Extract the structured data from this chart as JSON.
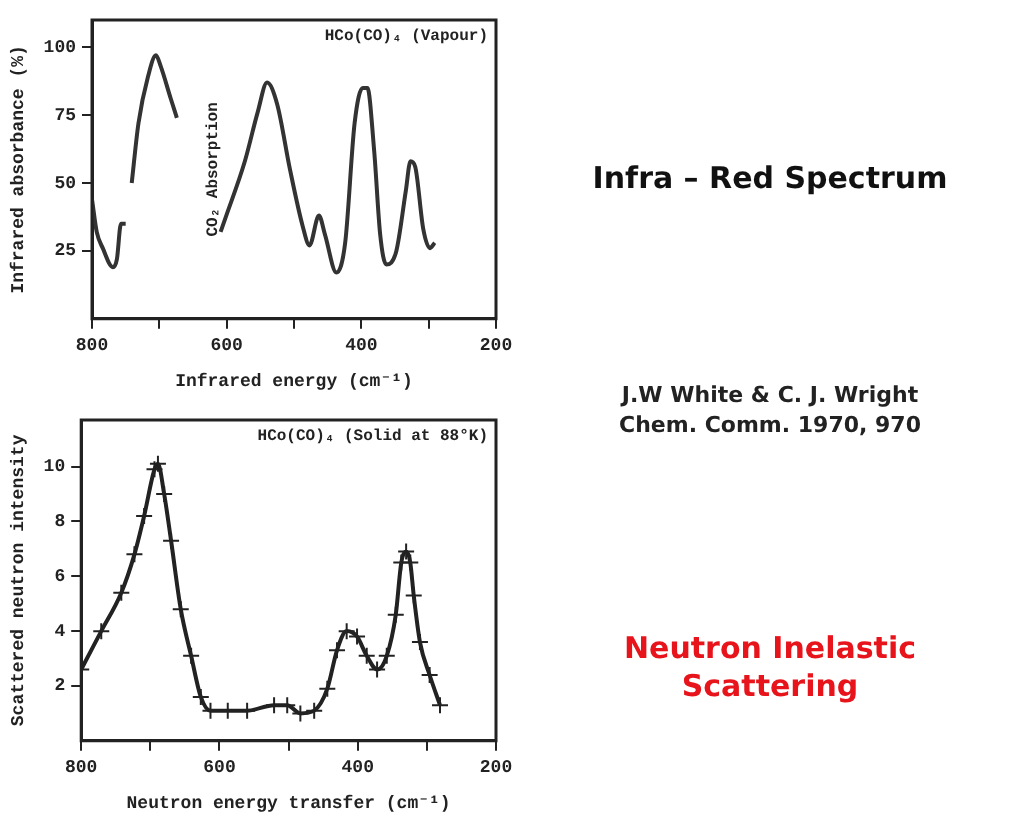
{
  "chart_data": [
    {
      "type": "line",
      "subtitle": "HCo(CO)₄ (Vapour)",
      "xlabel": "Infrared energy (cm⁻¹)",
      "ylabel": "Infrared absorbance (%)",
      "annotations": [
        "CO₂ Absorption"
      ],
      "x": [
        800,
        793,
        784,
        769,
        763,
        757,
        750,
        746,
        741,
        731,
        717,
        705,
        698,
        683,
        674,
        640,
        609,
        602,
        573,
        554,
        540,
        525,
        506,
        487,
        477,
        463,
        454,
        437,
        424,
        410,
        398,
        391,
        381,
        372,
        363,
        348,
        334,
        327,
        320,
        308,
        298,
        291
      ],
      "values": [
        44,
        32,
        26,
        19,
        22,
        35,
        35,
        null,
        50,
        72,
        89,
        97,
        93,
        81,
        74,
        null,
        32,
        37,
        58,
        76,
        87,
        79,
        55,
        34,
        27,
        38,
        31,
        17,
        28,
        72,
        85,
        85,
        62,
        31,
        20,
        25,
        47,
        58,
        56,
        33,
        26,
        28
      ],
      "color": "#333333",
      "xlim": [
        800,
        200
      ],
      "ylim": [
        0,
        110
      ],
      "xticks": [
        800,
        {
          "value": 700,
          "label": null
        },
        600,
        {
          "value": 500,
          "label": null
        },
        400,
        {
          "value": 300,
          "label": null
        },
        200
      ],
      "yticks": [
        25,
        50,
        75,
        100
      ],
      "grid": false,
      "legend": false,
      "marker": "none",
      "line_style": "solid"
    },
    {
      "type": "other",
      "annotations": [
        "Infra – Red Spectrum",
        "J.W White & C. J. Wright",
        "Chem. Comm.  1970, 970",
        "Neutron Inelastic Scattering"
      ]
    },
    {
      "type": "line",
      "subtitle": "HCo(CO)₄ (Solid at 88°K)",
      "xlabel": "Neutron energy transfer (cm⁻¹)",
      "ylabel": "Scattered neutron intensity",
      "x": [
        800,
        771,
        742,
        723,
        709,
        694,
        689,
        680,
        670,
        656,
        641,
        627,
        613,
        588,
        560,
        521,
        502,
        483,
        463,
        444,
        430,
        416,
        401,
        387,
        372,
        358,
        345,
        337,
        330,
        324,
        319,
        310,
        296,
        281
      ],
      "values": [
        2.6,
        4.0,
        5.4,
        6.8,
        8.2,
        9.9,
        10.1,
        9.0,
        7.3,
        4.8,
        3.1,
        1.6,
        1.1,
        1.1,
        1.1,
        1.3,
        1.3,
        1.0,
        1.1,
        1.9,
        3.3,
        4.0,
        3.8,
        3.1,
        2.6,
        3.1,
        4.6,
        6.5,
        6.9,
        6.5,
        5.3,
        3.6,
        2.4,
        1.3
      ],
      "color": "#222222",
      "xlim": [
        800,
        200
      ],
      "ylim": [
        0,
        11.7
      ],
      "xticks": [
        800,
        {
          "value": 700,
          "label": null
        },
        600,
        {
          "value": 500,
          "label": null
        },
        400,
        {
          "value": 300,
          "label": null
        },
        200
      ],
      "yticks": [
        2,
        4,
        6,
        8,
        10
      ],
      "grid": false,
      "legend": false,
      "marker": "cross",
      "line_style": "solid"
    }
  ]
}
